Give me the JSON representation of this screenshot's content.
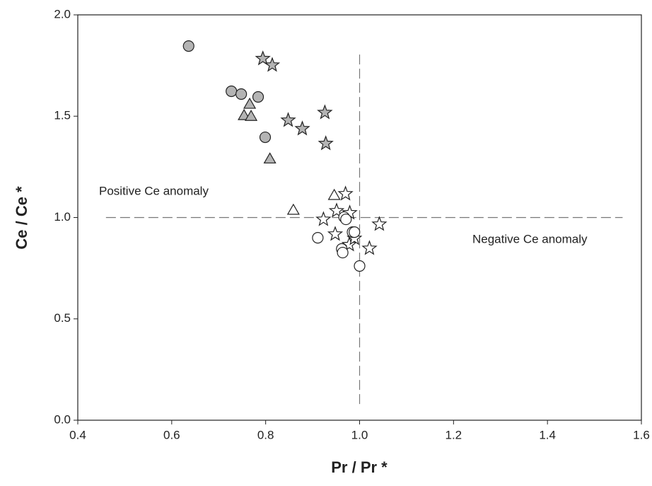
{
  "chart_data": {
    "type": "scatter",
    "x_label": "Pr / Pr *",
    "y_label": "Ce / Ce *",
    "xlim": [
      0.4,
      1.6
    ],
    "ylim": [
      0,
      2
    ],
    "xticks": [
      0.4,
      0.6,
      0.8,
      {
        "value": 1,
        "label": "1.0"
      },
      1.2,
      1.4,
      1.6
    ],
    "yticks": [
      {
        "value": 0,
        "label": "0.0"
      },
      0.5,
      {
        "value": 1,
        "label": "1.0"
      },
      1.5,
      {
        "value": 2,
        "label": "2.0"
      }
    ],
    "annotations": [
      "Positive Ce anomaly",
      "Negative Ce anomaly"
    ],
    "reference_lines": [
      {
        "orientation": "horizontal",
        "value": 1.0,
        "from": 0.46,
        "to": 1.56
      },
      {
        "orientation": "vertical",
        "value": 1.0,
        "from": 0.08,
        "to": 1.81
      }
    ],
    "series": [
      {
        "marker": "circle",
        "color": "#b4b4b4",
        "x": [
          0.636,
          0.727,
          0.748,
          0.784,
          0.799
        ],
        "values": [
          1.846,
          1.623,
          1.609,
          1.595,
          1.396
        ]
      },
      {
        "marker": "triangle",
        "color": "#b4b4b4",
        "x": [
          0.766,
          0.754,
          0.769,
          0.809
        ],
        "values": [
          1.56,
          1.504,
          1.5,
          1.29
        ]
      },
      {
        "marker": "star",
        "color": "#b4b4b4",
        "x": [
          0.794,
          0.814,
          0.926,
          0.848,
          0.878,
          0.928
        ],
        "values": [
          1.784,
          1.752,
          1.518,
          1.48,
          1.438,
          1.365
        ]
      },
      {
        "marker": "triangle",
        "color": "#ffffff",
        "x": [
          0.859,
          0.946
        ],
        "values": [
          1.037,
          1.11
        ]
      },
      {
        "marker": "star",
        "color": "#ffffff",
        "x": [
          0.97,
          0.923,
          0.951,
          0.979,
          1.042,
          0.948,
          0.978,
          1.021,
          0.989
        ],
        "values": [
          1.117,
          0.991,
          1.033,
          1.023,
          0.967,
          0.918,
          0.866,
          0.848,
          0.897
        ]
      },
      {
        "marker": "circle",
        "color": "#ffffff",
        "x": [
          0.911,
          0.962,
          0.967,
          0.971,
          0.985,
          0.989,
          1.0,
          0.964
        ],
        "values": [
          0.9,
          0.845,
          1.002,
          0.991,
          0.928,
          0.928,
          0.761,
          0.827
        ]
      }
    ]
  }
}
